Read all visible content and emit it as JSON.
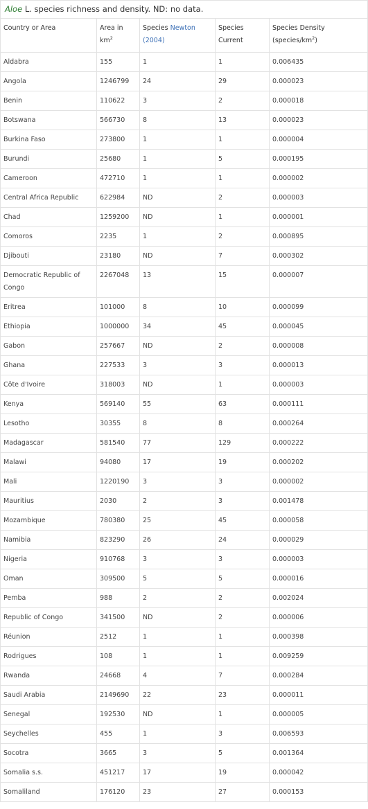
{
  "caption": {
    "genus": "Aloe",
    "rest": " L. species richness and density. ND: no data."
  },
  "headers": {
    "country": "Country or Area",
    "area_line1": "Area in",
    "area_line2": "km",
    "area_sup": "2",
    "newton_line1": "Species ",
    "newton_link": "Newton",
    "newton_line2": "(2004)",
    "current_line1": "Species",
    "current_line2": "Current",
    "density_line1": "Species Density",
    "density_line2": "(species/km",
    "density_sup": "2",
    "density_end": ")"
  },
  "rows": [
    {
      "country": "Aldabra",
      "area": "155",
      "newton": "1",
      "current": "1",
      "density": "0.006435"
    },
    {
      "country": "Angola",
      "area": "1246799",
      "newton": "24",
      "current": "29",
      "density": "0.000023"
    },
    {
      "country": "Benin",
      "area": "110622",
      "newton": "3",
      "current": "2",
      "density": "0.000018"
    },
    {
      "country": "Botswana",
      "area": "566730",
      "newton": "8",
      "current": "13",
      "density": "0.000023"
    },
    {
      "country": "Burkina Faso",
      "area": "273800",
      "newton": "1",
      "current": "1",
      "density": "0.000004"
    },
    {
      "country": "Burundi",
      "area": "25680",
      "newton": "1",
      "current": "5",
      "density": "0.000195"
    },
    {
      "country": "Cameroon",
      "area": "472710",
      "newton": "1",
      "current": "1",
      "density": "0.000002"
    },
    {
      "country": "Central Africa Republic",
      "area": "622984",
      "newton": "ND",
      "current": "2",
      "density": "0.000003"
    },
    {
      "country": "Chad",
      "area": "1259200",
      "newton": "ND",
      "current": "1",
      "density": "0.000001"
    },
    {
      "country": "Comoros",
      "area": "2235",
      "newton": "1",
      "current": "2",
      "density": "0.000895"
    },
    {
      "country": "Djibouti",
      "area": "23180",
      "newton": "ND",
      "current": "7",
      "density": "0.000302"
    },
    {
      "country": "Democratic Republic of Congo",
      "area": "2267048",
      "newton": "13",
      "current": "15",
      "density": "0.000007",
      "tall": true
    },
    {
      "country": "Eritrea",
      "area": "101000",
      "newton": "8",
      "current": "10",
      "density": "0.000099"
    },
    {
      "country": "Ethiopia",
      "area": "1000000",
      "newton": "34",
      "current": "45",
      "density": "0.000045"
    },
    {
      "country": "Gabon",
      "area": "257667",
      "newton": "ND",
      "current": "2",
      "density": "0.000008"
    },
    {
      "country": "Ghana",
      "area": "227533",
      "newton": "3",
      "current": "3",
      "density": "0.000013"
    },
    {
      "country": "Côte d'Ivoire",
      "area": "318003",
      "newton": "ND",
      "current": "1",
      "density": "0.000003"
    },
    {
      "country": "Kenya",
      "area": "569140",
      "newton": "55",
      "current": "63",
      "density": "0.000111"
    },
    {
      "country": "Lesotho",
      "area": "30355",
      "newton": "8",
      "current": "8",
      "density": "0.000264"
    },
    {
      "country": "Madagascar",
      "area": "581540",
      "newton": "77",
      "current": "129",
      "density": "0.000222"
    },
    {
      "country": "Malawi",
      "area": "94080",
      "newton": "17",
      "current": "19",
      "density": "0.000202"
    },
    {
      "country": "Mali",
      "area": "1220190",
      "newton": "3",
      "current": "3",
      "density": "0.000002"
    },
    {
      "country": "Mauritius",
      "area": "2030",
      "newton": "2",
      "current": "3",
      "density": "0.001478"
    },
    {
      "country": "Mozambique",
      "area": "780380",
      "newton": "25",
      "current": "45",
      "density": "0.000058"
    },
    {
      "country": "Namibia",
      "area": "823290",
      "newton": "26",
      "current": "24",
      "density": "0.000029"
    },
    {
      "country": "Nigeria",
      "area": "910768",
      "newton": "3",
      "current": "3",
      "density": "0.000003"
    },
    {
      "country": "Oman",
      "area": "309500",
      "newton": "5",
      "current": "5",
      "density": "0.000016"
    },
    {
      "country": "Pemba",
      "area": "988",
      "newton": "2",
      "current": "2",
      "density": "0.002024"
    },
    {
      "country": "Republic of Congo",
      "area": "341500",
      "newton": "ND",
      "current": "2",
      "density": "0.000006"
    },
    {
      "country": "Réunion",
      "area": "2512",
      "newton": "1",
      "current": "1",
      "density": "0.000398"
    },
    {
      "country": "Rodrigues",
      "area": "108",
      "newton": "1",
      "current": "1",
      "density": "0.009259"
    },
    {
      "country": "Rwanda",
      "area": "24668",
      "newton": "4",
      "current": "7",
      "density": "0.000284"
    },
    {
      "country": "Saudi Arabia",
      "area": "2149690",
      "newton": "22",
      "current": "23",
      "density": "0.000011"
    },
    {
      "country": "Senegal",
      "area": "192530",
      "newton": "ND",
      "current": "1",
      "density": "0.000005"
    },
    {
      "country": "Seychelles",
      "area": "455",
      "newton": "1",
      "current": "3",
      "density": "0.006593"
    },
    {
      "country": "Socotra",
      "area": "3665",
      "newton": "3",
      "current": "5",
      "density": "0.001364"
    },
    {
      "country": "Somalia s.s.",
      "area": "451217",
      "newton": "17",
      "current": "19",
      "density": "0.000042"
    },
    {
      "country": "Somaliland",
      "area": "176120",
      "newton": "23",
      "current": "27",
      "density": "0.000153"
    }
  ],
  "colors": {
    "link": "#3b6fb6",
    "genus": "#2e7d32",
    "border": "#e2e2e2"
  }
}
